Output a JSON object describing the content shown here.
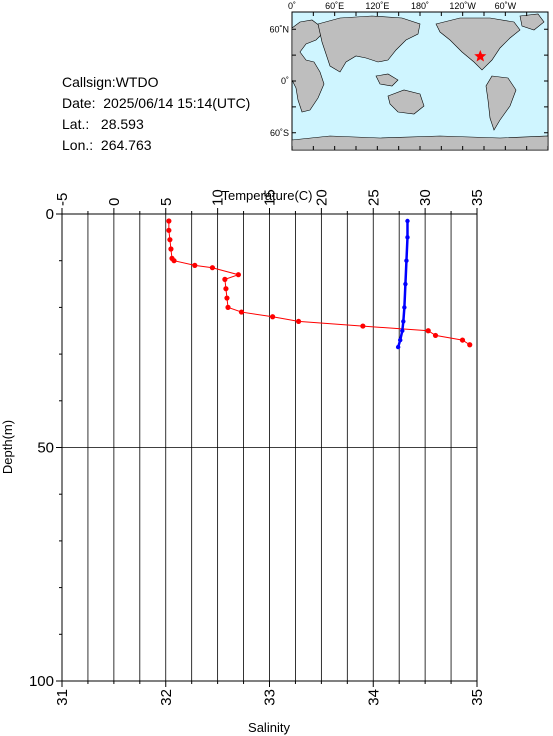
{
  "station": {
    "callsign_label": "Callsign:",
    "callsign": "WTDO",
    "date_label": "Date:",
    "date": "2025/06/14 15:14(UTC)",
    "lat_label": "Lat.:",
    "lat": "28.593",
    "lon_label": "Lon.:",
    "lon": "264.763"
  },
  "map": {
    "lon_labels": [
      "0˚",
      "60˚E",
      "120˚E",
      "180˚",
      "120˚W",
      "60˚W"
    ],
    "lat_labels": [
      "60˚N",
      "0˚",
      "60˚S"
    ],
    "marker_lon": 264.763,
    "marker_lat": 28.593,
    "ocean_color": "#cff5ff",
    "land_color": "#bebebe",
    "marker_color": "#ff0000"
  },
  "chart_data": {
    "type": "line",
    "top_axis": {
      "title": "Temperature(C)",
      "range": [
        -5,
        35
      ],
      "ticks": [
        "-5",
        "0",
        "5",
        "10",
        "15",
        "20",
        "25",
        "30",
        "35"
      ]
    },
    "bottom_axis": {
      "title": "Salinity",
      "range": [
        31,
        35
      ],
      "ticks": [
        "31",
        "32",
        "33",
        "34",
        "35"
      ]
    },
    "y_axis": {
      "title": "Depth(m)",
      "range": [
        0,
        100
      ],
      "ticks": [
        "0",
        "50",
        "100"
      ],
      "inverted": true
    },
    "series": [
      {
        "color": "#ff0000",
        "axis": "top",
        "points": [
          [
            5.3,
            1.5
          ],
          [
            5.3,
            3.5
          ],
          [
            5.4,
            5.5
          ],
          [
            5.5,
            7.5
          ],
          [
            5.6,
            9.5
          ],
          [
            5.8,
            10.0
          ],
          [
            7.8,
            11.0
          ],
          [
            9.5,
            11.5
          ],
          [
            12.0,
            13.0
          ],
          [
            10.7,
            14.0
          ],
          [
            10.8,
            16.0
          ],
          [
            10.9,
            18.0
          ],
          [
            11.0,
            20.0
          ],
          [
            12.3,
            21.0
          ],
          [
            15.3,
            22.0
          ],
          [
            17.8,
            23.0
          ],
          [
            24.0,
            24.0
          ],
          [
            30.3,
            25.0
          ],
          [
            31.0,
            26.0
          ],
          [
            33.6,
            27.0
          ],
          [
            34.3,
            28.0
          ]
        ]
      },
      {
        "color": "#0000ff",
        "axis": "bottom",
        "points": [
          [
            34.33,
            1.5
          ],
          [
            34.33,
            5.0
          ],
          [
            34.32,
            10.0
          ],
          [
            34.31,
            15.0
          ],
          [
            34.3,
            20.0
          ],
          [
            34.29,
            23.0
          ],
          [
            34.28,
            25.0
          ],
          [
            34.26,
            27.0
          ],
          [
            34.24,
            28.5
          ]
        ]
      }
    ],
    "grid": true
  }
}
